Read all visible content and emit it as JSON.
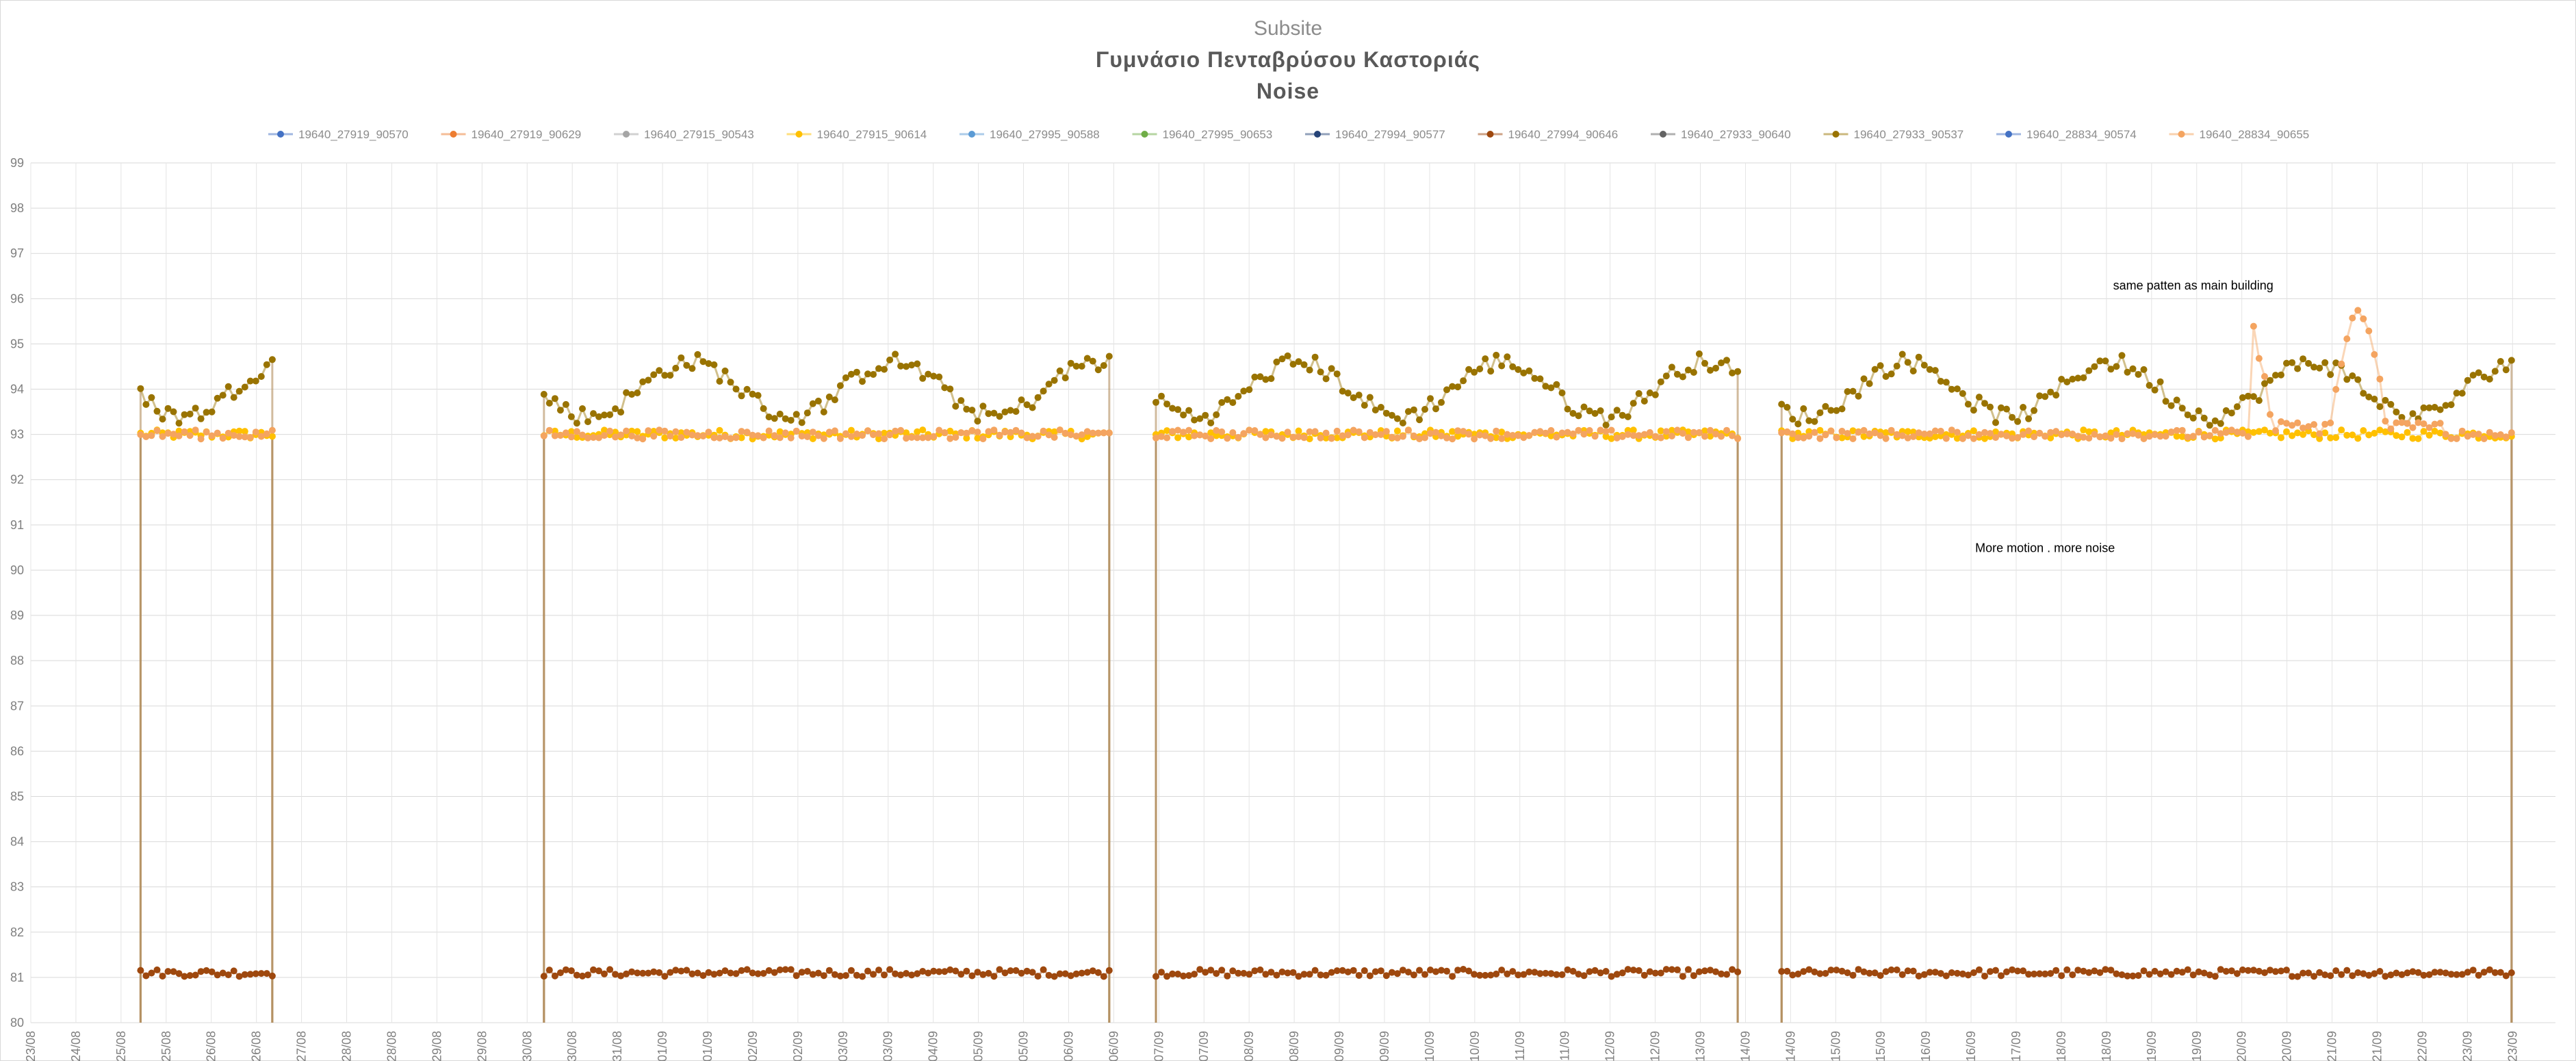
{
  "chart_data": {
    "type": "line",
    "supertitle": "Subsite",
    "title": "Γυμνάσιο Πενταβρύσου Καστοριάς",
    "subtitle": "Noise",
    "xlabel": "",
    "ylabel": "",
    "ylim": [
      80,
      99
    ],
    "yticks": [
      80,
      81,
      82,
      83,
      84,
      85,
      86,
      87,
      88,
      89,
      90,
      91,
      92,
      93,
      94,
      95,
      96,
      97,
      98,
      99
    ],
    "x_range_days": [
      0,
      30
    ],
    "x_tick_labels": [
      "23/08",
      "24/08",
      "25/08",
      "25/08",
      "26/08",
      "26/08",
      "27/08",
      "28/08",
      "28/08",
      "29/08",
      "29/08",
      "30/08",
      "30/08",
      "31/08",
      "01/09",
      "01/09",
      "02/09",
      "02/09",
      "03/09",
      "03/09",
      "04/09",
      "05/09",
      "05/09",
      "06/09",
      "06/09",
      "07/09",
      "07/09",
      "08/09",
      "08/09",
      "09/09",
      "09/09",
      "10/09",
      "10/09",
      "11/09",
      "11/09",
      "12/09",
      "12/09",
      "13/09",
      "14/09",
      "14/09",
      "15/09",
      "15/09",
      "16/09",
      "16/09",
      "17/09",
      "18/09",
      "18/09",
      "19/09",
      "19/09",
      "20/09",
      "20/09",
      "21/09",
      "21/09",
      "22/09",
      "23/09",
      "23/09"
    ],
    "legend_position": "top",
    "series": [
      {
        "name": "19640_27919_90570",
        "color": "#4472C4",
        "base": 93.0,
        "amp": 0.05,
        "active": false
      },
      {
        "name": "19640_27919_90629",
        "color": "#ED7D31",
        "base": 81.3,
        "amp": 0.08,
        "active": false
      },
      {
        "name": "19640_27915_90543",
        "color": "#A5A5A5",
        "base": 93.0,
        "amp": 0.05,
        "active": false
      },
      {
        "name": "19640_27915_90614",
        "color": "#FFC000",
        "base": 93.0,
        "amp": 0.1,
        "active": true
      },
      {
        "name": "19640_27995_90588",
        "color": "#5B9BD5",
        "base": 93.0,
        "amp": 0.05,
        "active": false
      },
      {
        "name": "19640_27995_90653",
        "color": "#70AD47",
        "base": 81.2,
        "amp": 0.08,
        "active": false
      },
      {
        "name": "19640_27994_90577",
        "color": "#264478",
        "base": 81.1,
        "amp": 0.05,
        "active": false
      },
      {
        "name": "19640_27994_90646",
        "color": "#9E480E",
        "base": 81.1,
        "amp": 0.08,
        "active": true
      },
      {
        "name": "19640_27933_90640",
        "color": "#636363",
        "base": 93.1,
        "amp": 0.05,
        "active": false
      },
      {
        "name": "19640_27933_90537",
        "color": "#997300",
        "base": 94.0,
        "amp": 0.6,
        "active": true
      },
      {
        "name": "19640_28834_90574",
        "color": "#4472C4",
        "base": 93.0,
        "amp": 0.05,
        "active": false
      },
      {
        "name": "19640_28834_90655",
        "color": "#F4A460",
        "base": 93.0,
        "amp": 0.1,
        "active": true
      }
    ],
    "data_segments_days": [
      [
        2.0,
        4.4
      ],
      [
        9.35,
        19.7
      ],
      [
        20.5,
        31.2
      ],
      [
        31.9,
        45.3
      ]
    ],
    "annotations": [
      {
        "text": "same patten as main building",
        "x_day": 39.4,
        "y": 96.2
      },
      {
        "text": "More motion . more noise",
        "x_day": 36.7,
        "y": 90.4
      }
    ]
  }
}
